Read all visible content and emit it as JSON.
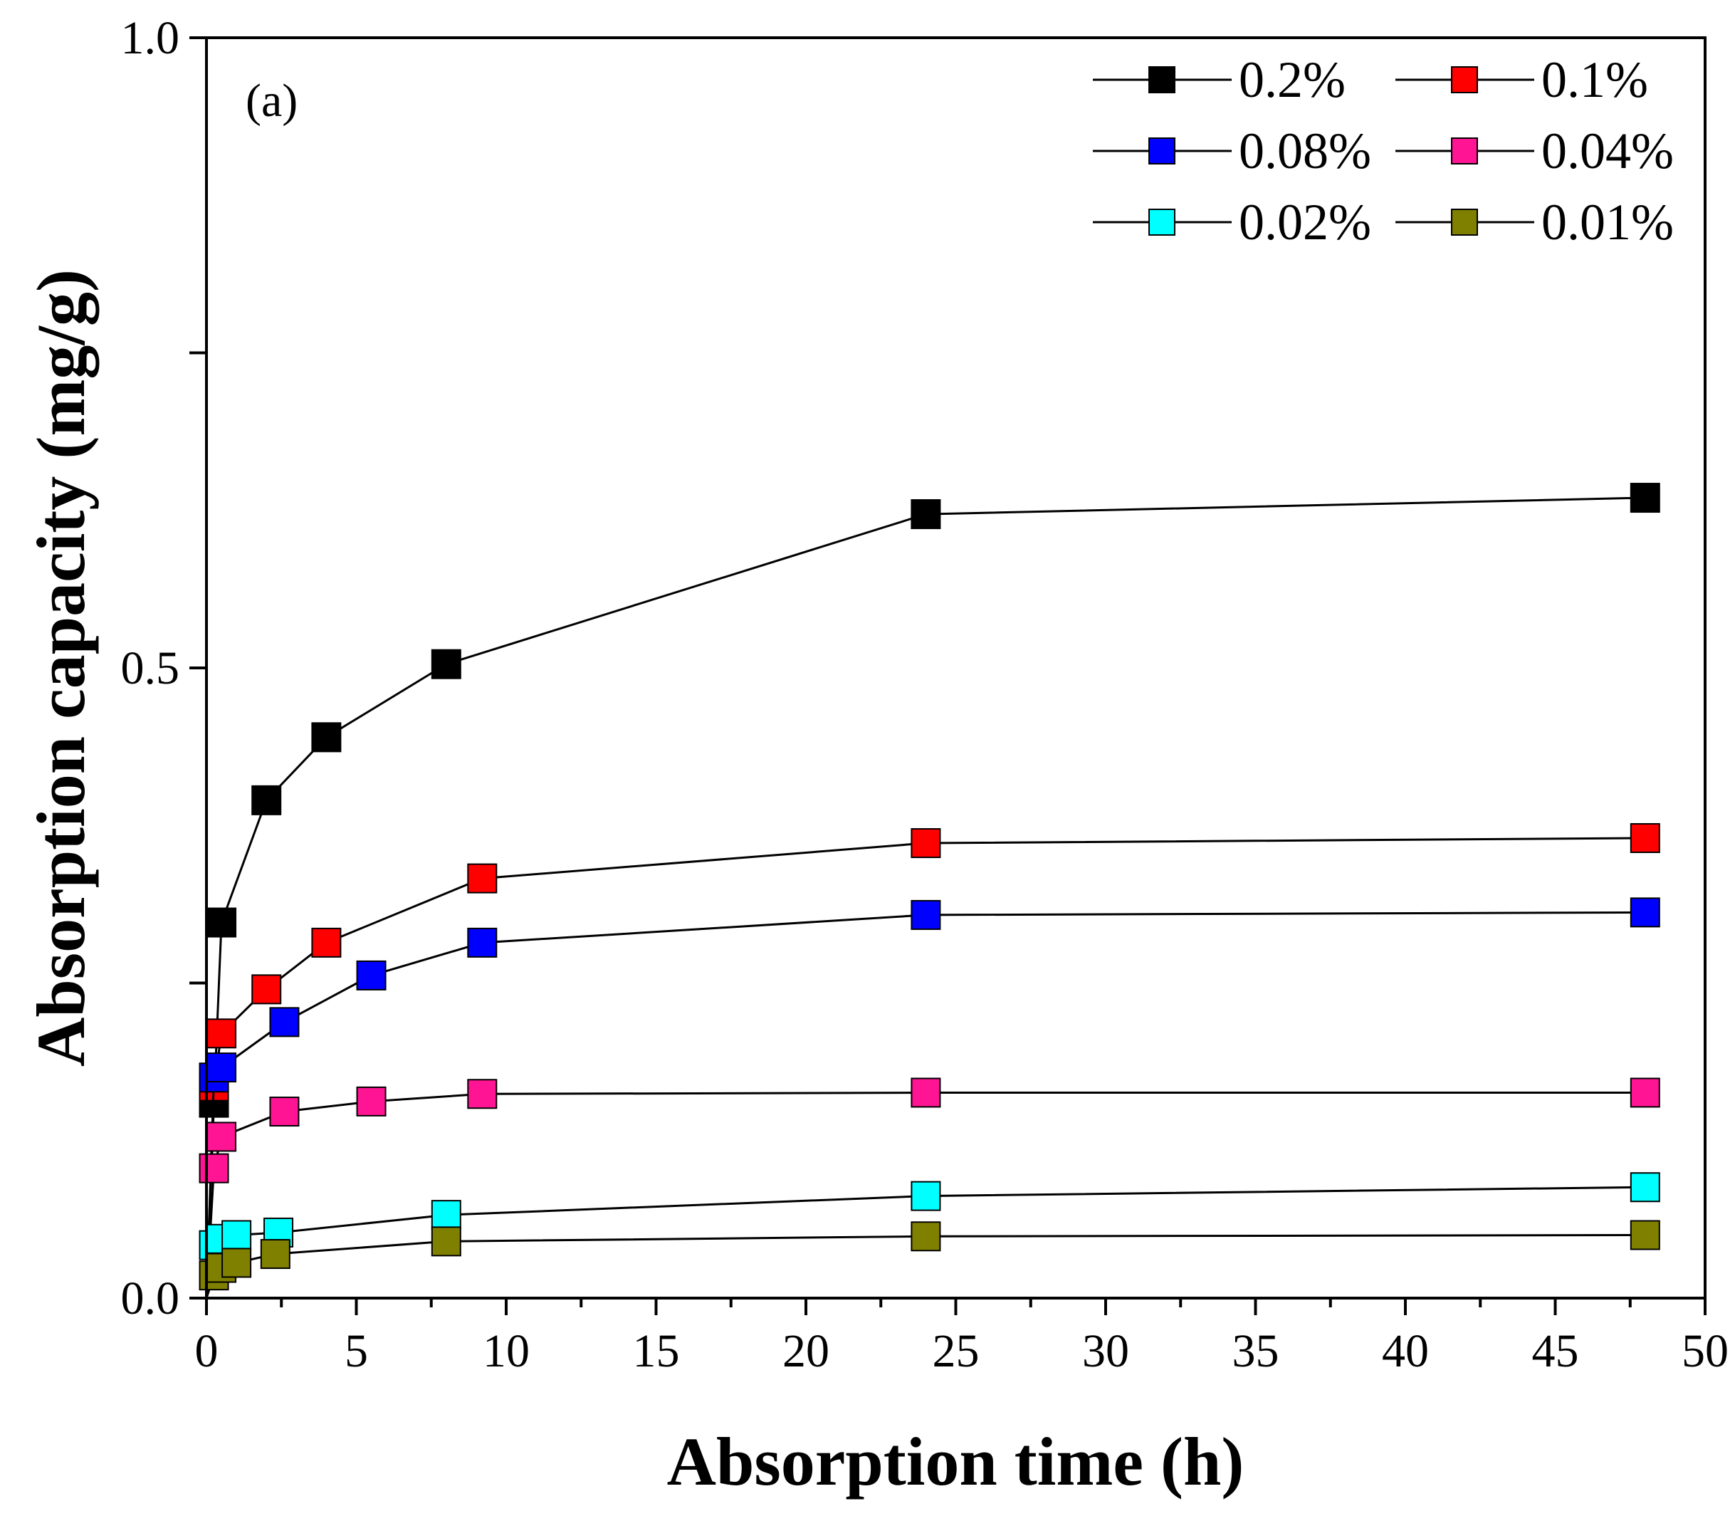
{
  "chart_data": {
    "type": "line",
    "panel_label": "(a)",
    "xlabel": "Absorption time (h)",
    "ylabel": "Absorption capacity (mg/g)",
    "xlim": [
      0,
      50
    ],
    "ylim": [
      0,
      1.0
    ],
    "x_ticks": [
      0,
      5,
      10,
      15,
      20,
      25,
      30,
      35,
      40,
      45,
      50
    ],
    "x_tick_labels": [
      "0",
      "5",
      "10",
      "15",
      "20",
      "25",
      "30",
      "35",
      "40",
      "45",
      "50"
    ],
    "y_ticks": [
      0,
      0.25,
      0.5,
      0.75,
      1.0
    ],
    "y_tick_labels": [
      "0.0",
      "",
      "0.5",
      "",
      "1.0"
    ],
    "legend_position": "top-right",
    "series": [
      {
        "name": "0.2%",
        "color": "#000000",
        "points": [
          [
            0,
            0.0
          ],
          [
            0.25,
            0.155
          ],
          [
            0.5,
            0.298
          ],
          [
            2,
            0.395
          ],
          [
            4,
            0.445
          ],
          [
            8,
            0.503
          ],
          [
            24,
            0.622
          ],
          [
            48,
            0.635
          ]
        ]
      },
      {
        "name": "0.1%",
        "color": "#ff0000",
        "points": [
          [
            0,
            0.0
          ],
          [
            0.25,
            0.168
          ],
          [
            0.5,
            0.21
          ],
          [
            2,
            0.245
          ],
          [
            4,
            0.282
          ],
          [
            9.2,
            0.333
          ],
          [
            24,
            0.361
          ],
          [
            48,
            0.365
          ]
        ]
      },
      {
        "name": "0.08%",
        "color": "#0000ff",
        "points": [
          [
            0,
            0.0
          ],
          [
            0.25,
            0.175
          ],
          [
            0.5,
            0.183
          ],
          [
            2.6,
            0.219
          ],
          [
            5.5,
            0.256
          ],
          [
            9.2,
            0.282
          ],
          [
            24,
            0.304
          ],
          [
            48,
            0.306
          ]
        ]
      },
      {
        "name": "0.04%",
        "color": "#ff1493",
        "points": [
          [
            0,
            0.0
          ],
          [
            0.25,
            0.103
          ],
          [
            0.5,
            0.128
          ],
          [
            2.6,
            0.148
          ],
          [
            5.5,
            0.156
          ],
          [
            9.2,
            0.162
          ],
          [
            24,
            0.163
          ],
          [
            48,
            0.163
          ]
        ]
      },
      {
        "name": "0.02%",
        "color": "#00ffff",
        "points": [
          [
            0,
            0.0
          ],
          [
            0.25,
            0.042
          ],
          [
            0.5,
            0.047
          ],
          [
            1,
            0.05
          ],
          [
            2.4,
            0.052
          ],
          [
            8,
            0.066
          ],
          [
            24,
            0.081
          ],
          [
            48,
            0.088
          ]
        ]
      },
      {
        "name": "0.01%",
        "color": "#808000",
        "points": [
          [
            0,
            0.0
          ],
          [
            0.25,
            0.018
          ],
          [
            0.5,
            0.024
          ],
          [
            1,
            0.028
          ],
          [
            2.3,
            0.035
          ],
          [
            8,
            0.045
          ],
          [
            24,
            0.049
          ],
          [
            48,
            0.05
          ]
        ]
      }
    ]
  }
}
